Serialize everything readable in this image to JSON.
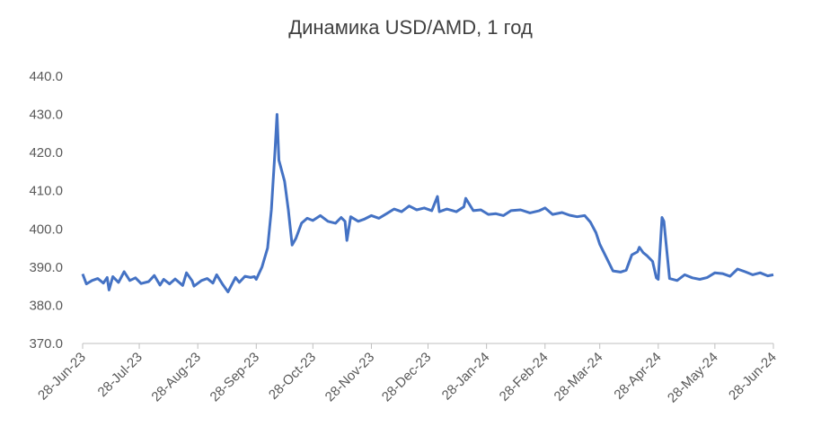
{
  "chart_data": {
    "type": "line",
    "title": "Динамика USD/AMD, 1 год",
    "x": [
      "2023-06-28",
      "2023-06-30",
      "2023-07-03",
      "2023-07-06",
      "2023-07-09",
      "2023-07-11",
      "2023-07-12",
      "2023-07-14",
      "2023-07-17",
      "2023-07-20",
      "2023-07-23",
      "2023-07-26",
      "2023-07-29",
      "2023-08-02",
      "2023-08-05",
      "2023-08-08",
      "2023-08-10",
      "2023-08-13",
      "2023-08-16",
      "2023-08-20",
      "2023-08-22",
      "2023-08-25",
      "2023-08-26",
      "2023-08-30",
      "2023-09-02",
      "2023-09-05",
      "2023-09-07",
      "2023-09-10",
      "2023-09-13",
      "2023-09-17",
      "2023-09-19",
      "2023-09-22",
      "2023-09-25",
      "2023-09-27",
      "2023-09-28",
      "2023-10-01",
      "2023-10-04",
      "2023-10-06",
      "2023-10-08",
      "2023-10-09",
      "2023-10-10",
      "2023-10-13",
      "2023-10-15",
      "2023-10-17",
      "2023-10-19",
      "2023-10-22",
      "2023-10-25",
      "2023-10-28",
      "2023-11-01",
      "2023-11-05",
      "2023-11-09",
      "2023-11-12",
      "2023-11-14",
      "2023-11-15",
      "2023-11-17",
      "2023-11-21",
      "2023-11-24",
      "2023-11-28",
      "2023-12-02",
      "2023-12-06",
      "2023-12-10",
      "2023-12-14",
      "2023-12-18",
      "2023-12-22",
      "2023-12-26",
      "2023-12-30",
      "2024-01-02",
      "2024-01-03",
      "2024-01-07",
      "2024-01-12",
      "2024-01-16",
      "2024-01-17",
      "2024-01-21",
      "2024-01-25",
      "2024-01-29",
      "2024-02-02",
      "2024-02-06",
      "2024-02-10",
      "2024-02-15",
      "2024-02-20",
      "2024-02-25",
      "2024-02-28",
      "2024-03-03",
      "2024-03-08",
      "2024-03-12",
      "2024-03-16",
      "2024-03-20",
      "2024-03-23",
      "2024-03-26",
      "2024-03-28",
      "2024-04-01",
      "2024-04-04",
      "2024-04-08",
      "2024-04-11",
      "2024-04-14",
      "2024-04-17",
      "2024-04-18",
      "2024-04-20",
      "2024-04-22",
      "2024-04-25",
      "2024-04-27",
      "2024-04-28",
      "2024-04-30",
      "2024-05-01",
      "2024-05-04",
      "2024-05-08",
      "2024-05-12",
      "2024-05-16",
      "2024-05-20",
      "2024-05-24",
      "2024-05-28",
      "2024-06-01",
      "2024-06-05",
      "2024-06-09",
      "2024-06-13",
      "2024-06-17",
      "2024-06-21",
      "2024-06-25",
      "2024-06-28"
    ],
    "series": [
      {
        "name": "USD/AMD",
        "color": "#4472c4",
        "values": [
          388.2,
          385.6,
          386.5,
          387.0,
          385.8,
          387.3,
          384.0,
          387.5,
          386.0,
          388.8,
          386.5,
          387.2,
          385.7,
          386.2,
          387.8,
          385.3,
          386.8,
          385.6,
          386.9,
          385.2,
          388.5,
          386.4,
          385.0,
          386.5,
          387.0,
          385.8,
          388.0,
          385.6,
          383.5,
          387.3,
          386.0,
          387.6,
          387.3,
          387.5,
          386.8,
          390.0,
          395.0,
          405.0,
          421.0,
          430.0,
          418.0,
          412.5,
          405.0,
          395.8,
          397.5,
          401.5,
          402.8,
          402.2,
          403.5,
          402.0,
          401.5,
          403.0,
          402.0,
          397.0,
          403.2,
          402.0,
          402.5,
          403.5,
          402.8,
          404.0,
          405.2,
          404.5,
          406.0,
          405.0,
          405.5,
          404.8,
          408.5,
          404.5,
          405.2,
          404.5,
          405.8,
          408.0,
          404.8,
          405.0,
          403.8,
          404.0,
          403.5,
          404.8,
          405.0,
          404.2,
          404.8,
          405.5,
          403.8,
          404.3,
          403.6,
          403.2,
          403.5,
          401.8,
          399.0,
          396.0,
          392.0,
          389.0,
          388.7,
          389.2,
          393.2,
          394.0,
          395.2,
          393.8,
          393.0,
          391.5,
          387.2,
          386.8,
          403.0,
          402.0,
          387.0,
          386.5,
          388.0,
          387.2,
          386.8,
          387.3,
          388.5,
          388.3,
          387.6,
          389.5,
          388.8,
          388.0,
          388.5,
          387.7,
          388.0
        ]
      }
    ],
    "xlim": [
      "2023-06-28",
      "2024-06-28"
    ],
    "xticks": [
      {
        "value": "2023-06-28",
        "label": "28-Jun-23"
      },
      {
        "value": "2023-07-28",
        "label": "28-Jul-23"
      },
      {
        "value": "2023-08-28",
        "label": "28-Aug-23"
      },
      {
        "value": "2023-09-28",
        "label": "28-Sep-23"
      },
      {
        "value": "2023-10-28",
        "label": "28-Oct-23"
      },
      {
        "value": "2023-11-28",
        "label": "28-Nov-23"
      },
      {
        "value": "2023-12-28",
        "label": "28-Dec-23"
      },
      {
        "value": "2024-01-28",
        "label": "28-Jan-24"
      },
      {
        "value": "2024-02-28",
        "label": "28-Feb-24"
      },
      {
        "value": "2024-03-28",
        "label": "28-Mar-24"
      },
      {
        "value": "2024-04-28",
        "label": "28-Apr-24"
      },
      {
        "value": "2024-05-28",
        "label": "28-May-24"
      },
      {
        "value": "2024-06-28",
        "label": "28-Jun-24"
      }
    ],
    "ylim": [
      370,
      440
    ],
    "yticks": [
      {
        "value": 370,
        "label": "370.0"
      },
      {
        "value": 380,
        "label": "380.0"
      },
      {
        "value": 390,
        "label": "390.0"
      },
      {
        "value": 400,
        "label": "400.0"
      },
      {
        "value": 410,
        "label": "410.0"
      },
      {
        "value": 420,
        "label": "420.0"
      },
      {
        "value": 430,
        "label": "430.0"
      },
      {
        "value": 440,
        "label": "440.0"
      }
    ],
    "grid": false
  }
}
